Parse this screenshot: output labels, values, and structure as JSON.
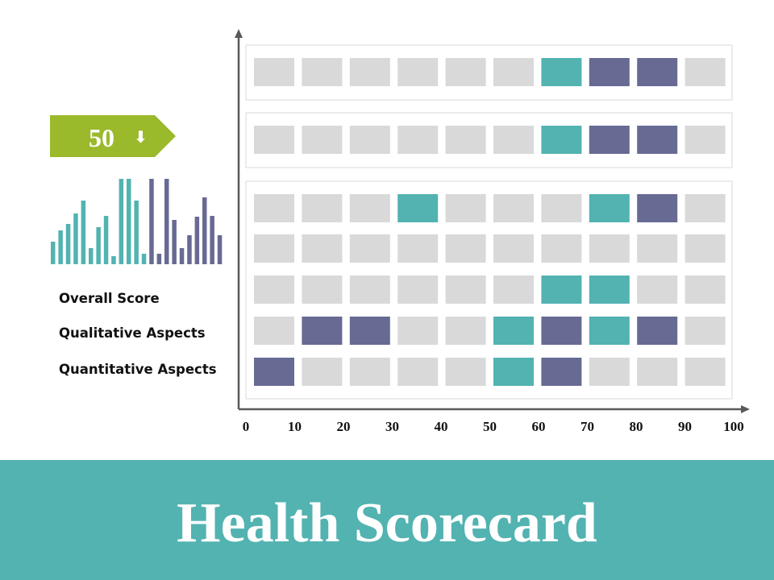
{
  "slide": {
    "title": "Health Scorecard",
    "score": {
      "value": "50",
      "trend_icon": "down-arrow-icon",
      "arrow_glyph": "⬇"
    },
    "labels": {
      "overall": "Overall Score",
      "qualitative": "Qualitative Aspects",
      "quantitative": "Quantitative Aspects"
    },
    "colors": {
      "teal": "#52b3b1",
      "purple": "#676a93",
      "gray": "#d9d9d9",
      "green": "#9aba2c",
      "footer": "#52b3b1",
      "axis": "#595959"
    }
  },
  "chart_data": [
    {
      "type": "heatmap",
      "x_tick_labels": [
        "0",
        "10",
        "20",
        "30",
        "40",
        "50",
        "60",
        "70",
        "80",
        "90",
        "100"
      ],
      "xlim": [
        0,
        100
      ],
      "legend": "none",
      "cell_states": [
        "empty",
        "teal",
        "purple"
      ],
      "groups": [
        {
          "rows": [
            [
              "empty",
              "empty",
              "empty",
              "empty",
              "empty",
              "empty",
              "teal",
              "purple",
              "purple",
              "empty"
            ]
          ]
        },
        {
          "rows": [
            [
              "empty",
              "empty",
              "empty",
              "empty",
              "empty",
              "empty",
              "teal",
              "purple",
              "purple",
              "empty"
            ]
          ]
        },
        {
          "rows": [
            [
              "empty",
              "empty",
              "empty",
              "teal",
              "empty",
              "empty",
              "empty",
              "teal",
              "purple",
              "empty"
            ],
            [
              "empty",
              "empty",
              "empty",
              "empty",
              "empty",
              "empty",
              "empty",
              "empty",
              "empty",
              "empty"
            ],
            [
              "empty",
              "empty",
              "empty",
              "empty",
              "empty",
              "empty",
              "teal",
              "teal",
              "empty",
              "empty"
            ],
            [
              "empty",
              "purple",
              "purple",
              "empty",
              "empty",
              "teal",
              "purple",
              "teal",
              "purple",
              "empty"
            ],
            [
              "purple",
              "empty",
              "empty",
              "empty",
              "empty",
              "teal",
              "purple",
              "empty",
              "empty",
              "empty"
            ]
          ]
        }
      ]
    },
    {
      "type": "bar",
      "values": [
        28,
        42,
        50,
        63,
        79,
        20,
        46,
        60,
        10,
        106,
        106,
        79,
        13,
        106,
        13,
        106,
        55,
        20,
        36,
        59,
        83,
        60,
        36
      ],
      "colors": [
        "teal",
        "teal",
        "teal",
        "teal",
        "teal",
        "teal",
        "teal",
        "teal",
        "teal",
        "teal",
        "teal",
        "teal",
        "teal",
        "purple",
        "purple",
        "purple",
        "purple",
        "purple",
        "purple",
        "purple",
        "purple",
        "purple",
        "purple"
      ],
      "ylim": [
        0,
        106
      ]
    }
  ]
}
